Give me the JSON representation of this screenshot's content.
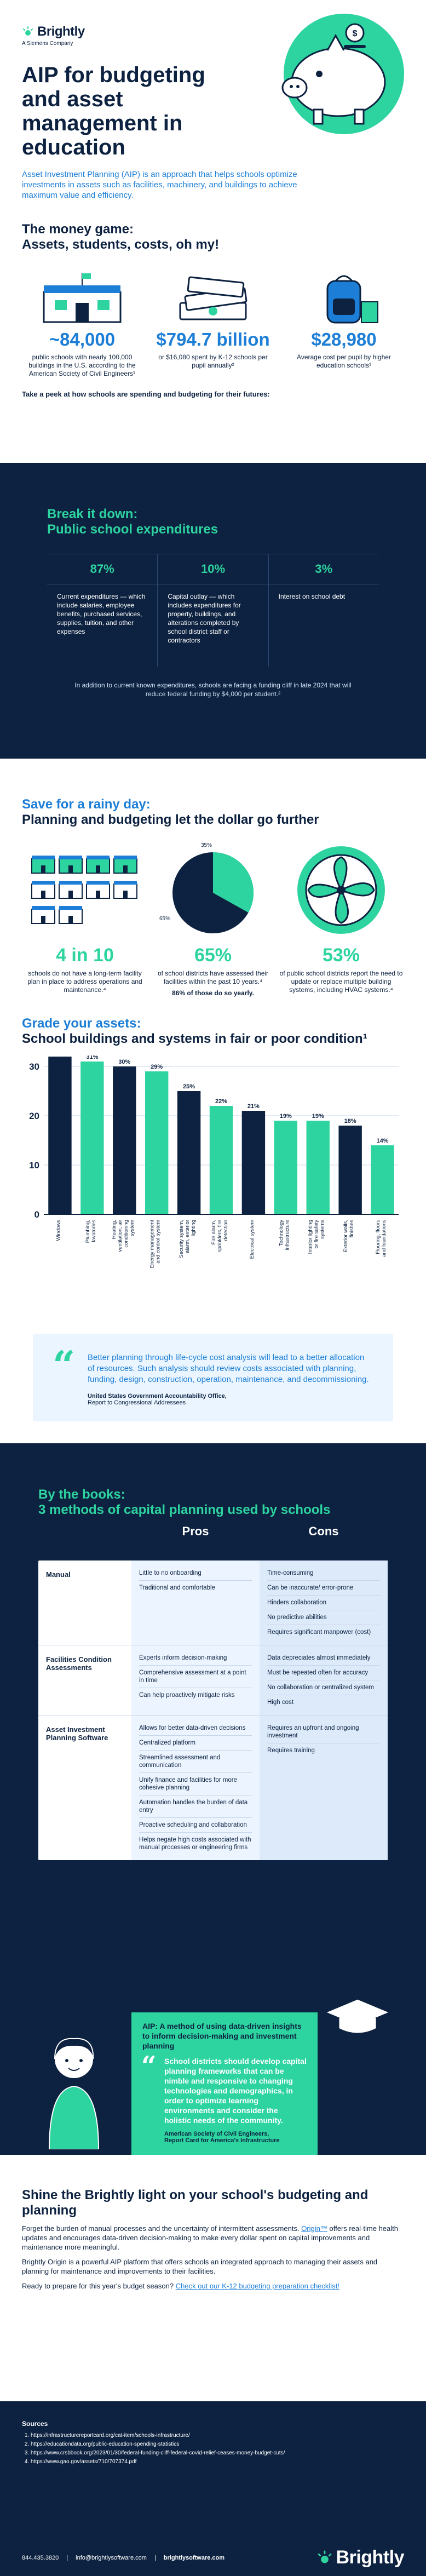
{
  "header": {
    "logo_text": "Brightly",
    "logo_sub": "A Siemens Company",
    "title": "AIP for budgeting and asset management in education",
    "lead": "Asset Investment Planning (AIP) is an approach that helps schools optimize investments in assets such as facilities, machinery, and buildings to achieve maximum value and efficiency."
  },
  "money": {
    "title_l1": "The money game:",
    "title_l2": "Assets, students, costs, oh my!",
    "stats": [
      {
        "value": "~84,000",
        "text": "public schools with nearly 100,000 buildings in the U.S. according to the American Society of Civil Engineers¹"
      },
      {
        "value": "$794.7 billion",
        "text": "or $16,080 spent by K-12 schools per pupil annually²"
      },
      {
        "value": "$28,980",
        "text": "Average cost per pupil by higher education schools³"
      }
    ],
    "peek": "Take a peek at how schools are spending and budgeting for their futures:"
  },
  "breakdown": {
    "title_l1": "Break it down:",
    "title_l2": "Public school expenditures",
    "cols": [
      {
        "pct": "87%",
        "text": "Current expenditures — which include salaries, employee benefits, purchased services, supplies, tuition, and other expenses"
      },
      {
        "pct": "10%",
        "text": "Capital outlay — which includes expenditures for property, buildings, and alterations completed by school district staff or contractors"
      },
      {
        "pct": "3%",
        "text": "Interest on school debt"
      }
    ],
    "note": "In addition to current known expenditures, schools are facing a funding cliff in late 2024 that will reduce federal funding by $4,000 per student.²"
  },
  "rainy": {
    "title_l1": "Save for a rainy day:",
    "title_l2": "Planning and budgeting let the dollar go further",
    "pie_label_top": "35%",
    "pie_label_bottom": "65%",
    "stats": [
      {
        "value": "4 in 10",
        "text": "schools do not have a long-term facility plan in place to address operations and maintenance.⁴"
      },
      {
        "value": "65%",
        "text": "of school districts have assessed their facilities within the past 10 years.⁴",
        "extra": "86% of those do so yearly."
      },
      {
        "value": "53%",
        "text": "of public school districts report the need to update or replace multiple building systems, including HVAC systems.⁴"
      }
    ]
  },
  "grade": {
    "title_l1": "Grade your assets:",
    "title_l2": "School buildings and systems in fair or poor condition¹"
  },
  "chart_data": {
    "type": "bar",
    "title": "School buildings and systems in fair or poor condition",
    "ylim": [
      0,
      30
    ],
    "yticks": [
      0,
      10,
      20,
      30
    ],
    "categories": [
      "Windows",
      "Plumbing, lavatories",
      "Heating, ventilation, air conditioning system",
      "Energy management and control system",
      "Security system, alarm, exterior lighting",
      "Fire alarm, sprinklers, fire detection",
      "Electrical system",
      "Technology infrastructure",
      "Interior lighting or fire safety systems",
      "Exterior walls, finishes",
      "Flooring, floors and foundations"
    ],
    "values": [
      32,
      31,
      30,
      29,
      25,
      22,
      21,
      19,
      19,
      18,
      14
    ],
    "labels": [
      "32%",
      "31%",
      "30%",
      "29%",
      "25%",
      "22%",
      "21%",
      "19%",
      "19%",
      "18%",
      "14%"
    ],
    "colors": [
      "#0d2240",
      "#2dd4a0",
      "#0d2240",
      "#2dd4a0",
      "#0d2240",
      "#2dd4a0",
      "#0d2240",
      "#2dd4a0",
      "#2dd4a0",
      "#0d2240",
      "#2dd4a0"
    ],
    "grid": true
  },
  "quote1": {
    "text": "Better planning through life-cycle cost analysis will lead to a better allocation of resources. Such analysis should review costs associated with planning, funding, design, construction, operation, maintenance, and decommissioning.",
    "source": "United States Government Accountability Office,",
    "source2": "Report to Congressional Addressees"
  },
  "books": {
    "title_l1": "By the books:",
    "title_l2": "3 methods of capital planning used by schools",
    "head_pros": "Pros",
    "head_cons": "Cons",
    "rows": [
      {
        "name": "Manual",
        "pros": [
          "Little to no onboarding",
          "Traditional and comfortable"
        ],
        "cons": [
          "Time-consuming",
          "Can be inaccurate/ error-prone",
          "Hinders collaboration",
          "No predictive abilities",
          "Requires significant manpower (cost)"
        ]
      },
      {
        "name": "Facilities Condition Assessments",
        "pros": [
          "Experts inform decision-making",
          "Comprehensive assessment at a point in time",
          "Can help proactively mitigate risks"
        ],
        "cons": [
          "Data depreciates almost immediately",
          "Must be repeated often for accuracy",
          "No collaboration or centralized system",
          "High cost"
        ]
      },
      {
        "name": "Asset Investment Planning Software",
        "pros": [
          "Allows for better data-driven decisions",
          "Centralized platform",
          "Streamlined assessment and communication",
          "Unify finance and facilities for more cohesive planning",
          "Automation handles the burden of data entry",
          "Proactive scheduling and collaboration",
          "Helps negate high costs associated with manual processes or engineering firms"
        ],
        "cons": [
          "Requires an upfront and ongoing investment",
          "Requires training"
        ]
      }
    ]
  },
  "quote2": {
    "heading": "AIP: A method of using data-driven insights to inform decision-making and investment planning",
    "text": "School districts should develop capital planning frameworks that can be nimble and responsive to changing technologies and demographics, in order to optimize learning environments and consider the holistic needs of the community.",
    "source": "American Society of Civil Engineers,",
    "source2": "Report Card for America's Infrastructure"
  },
  "shine": {
    "title": "Shine the Brightly light on your school's budgeting and planning",
    "p1_a": "Forget the burden of manual processes and the uncertainty of intermittent assessments.",
    "p1_link": "Origin™",
    "p1_b": "offers real-time health updates and encourages data-driven decision-making to make every dollar spent on capital improvements and maintenance more meaningful.",
    "p2": "Brightly Origin is a powerful AIP platform that offers schools an integrated approach to managing their assets and planning for maintenance and improvements to their facilities.",
    "p3_a": "Ready to prepare for this year's budget season?",
    "p3_link": "Check out our K-12 budgeting preparation checklist!"
  },
  "footer": {
    "sources_title": "Sources",
    "sources": [
      "https://infrastructurereportcard.org/cat-item/schools-infrastructure/",
      "https://educationdata.org/public-education-spending-statistics",
      "https://www.crsbbook.org/2023/01/30/federal-funding-cliff-federal-covid-relief-ceases-money-budget-cuts/",
      "https://www.gao.gov/assets/710/707374.pdf"
    ],
    "phone": "844.435.3820",
    "email": "info@brightlysoftware.com",
    "site": "brightlysoftware.com",
    "logo_text": "Brightly"
  },
  "colors": {
    "navy": "#0d2240",
    "blue": "#1c7ed6",
    "green": "#2dd4a0"
  }
}
